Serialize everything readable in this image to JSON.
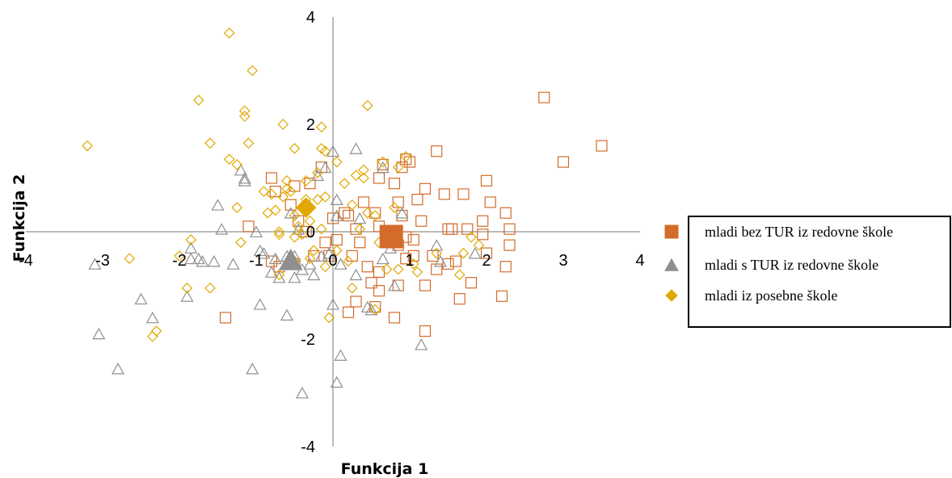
{
  "chart_data": {
    "type": "scatter",
    "xlabel": "Funkcija 1",
    "ylabel": "Funkcija 2",
    "xlim": [
      -4,
      4
    ],
    "ylim": [
      -4,
      4
    ],
    "xticks": [
      "-4",
      "-3",
      "-2",
      "-1",
      "0",
      "1",
      "2",
      "3",
      "4"
    ],
    "yticks": [
      "4",
      "2",
      "0",
      "-2",
      "-4"
    ],
    "grid": false,
    "legend_position": "right",
    "series": [
      {
        "name": "mladi bez TUR iz redovne škole",
        "marker": "square",
        "color": "#D46B2A",
        "centroid": [
          0.76,
          -0.09
        ],
        "points": [
          [
            2.75,
            2.5
          ],
          [
            3.5,
            1.6
          ],
          [
            3.0,
            1.3
          ],
          [
            1.35,
            1.5
          ],
          [
            1.0,
            1.3
          ],
          [
            0.9,
            1.2
          ],
          [
            0.95,
            1.35
          ],
          [
            0.65,
            1.25
          ],
          [
            1.2,
            0.8
          ],
          [
            1.45,
            0.7
          ],
          [
            1.7,
            0.7
          ],
          [
            2.0,
            0.95
          ],
          [
            2.05,
            0.55
          ],
          [
            2.25,
            0.35
          ],
          [
            2.3,
            0.05
          ],
          [
            2.3,
            -0.25
          ],
          [
            2.25,
            -0.65
          ],
          [
            2.2,
            -1.2
          ],
          [
            0.8,
            0.9
          ],
          [
            0.85,
            0.55
          ],
          [
            0.55,
            0.35
          ],
          [
            0.4,
            0.55
          ],
          [
            0.6,
            0.1
          ],
          [
            0.2,
            0.3
          ],
          [
            0.35,
            -0.2
          ],
          [
            0.25,
            -0.45
          ],
          [
            0.45,
            -0.65
          ],
          [
            0.6,
            -0.75
          ],
          [
            0.85,
            -0.25
          ],
          [
            1.05,
            -0.15
          ],
          [
            1.15,
            0.2
          ],
          [
            1.3,
            -0.45
          ],
          [
            1.35,
            -0.7
          ],
          [
            1.55,
            0.05
          ],
          [
            1.5,
            -0.6
          ],
          [
            1.75,
            0.05
          ],
          [
            1.8,
            -0.95
          ],
          [
            1.6,
            -0.55
          ],
          [
            1.65,
            -1.25
          ],
          [
            1.95,
            0.2
          ],
          [
            2.0,
            -0.4
          ],
          [
            1.95,
            -0.05
          ],
          [
            1.2,
            -1.0
          ],
          [
            1.05,
            -0.45
          ],
          [
            0.95,
            -0.5
          ],
          [
            0.85,
            -1.0
          ],
          [
            0.6,
            -1.1
          ],
          [
            0.55,
            -1.4
          ],
          [
            0.8,
            -1.6
          ],
          [
            0.3,
            -1.3
          ],
          [
            0.2,
            -1.5
          ],
          [
            0.0,
            0.25
          ],
          [
            0.05,
            -0.15
          ],
          [
            -0.15,
            1.2
          ],
          [
            -0.3,
            0.9
          ],
          [
            -0.5,
            0.85
          ],
          [
            -0.55,
            0.5
          ],
          [
            -0.8,
            1.0
          ],
          [
            -0.75,
            0.75
          ],
          [
            -0.45,
            0.2
          ],
          [
            -0.35,
            0.0
          ],
          [
            -0.1,
            -0.2
          ],
          [
            -0.05,
            -0.45
          ],
          [
            -0.25,
            -0.45
          ],
          [
            -0.5,
            -0.6
          ],
          [
            -0.8,
            -0.55
          ],
          [
            -1.1,
            0.1
          ],
          [
            -1.4,
            -1.6
          ],
          [
            -0.7,
            -0.65
          ],
          [
            0.5,
            -0.95
          ],
          [
            0.95,
            -0.1
          ],
          [
            1.1,
            0.6
          ],
          [
            1.2,
            -1.85
          ],
          [
            0.6,
            1.0
          ],
          [
            0.9,
            0.3
          ],
          [
            1.5,
            0.05
          ],
          [
            0.3,
            0.05
          ],
          [
            0.15,
            0.35
          ]
        ]
      },
      {
        "name": "mladi s TUR iz redovne škole",
        "marker": "triangle",
        "color": "#8F8F8F",
        "centroid": [
          -0.55,
          -0.52
        ],
        "points": [
          [
            -3.1,
            -0.6
          ],
          [
            -3.05,
            -1.9
          ],
          [
            -2.8,
            -2.55
          ],
          [
            -2.5,
            -1.25
          ],
          [
            -2.35,
            -1.6
          ],
          [
            -1.85,
            -0.5
          ],
          [
            -1.9,
            -1.2
          ],
          [
            -1.75,
            -0.5
          ],
          [
            -1.7,
            -0.55
          ],
          [
            -1.55,
            -0.55
          ],
          [
            -1.5,
            0.5
          ],
          [
            -1.45,
            0.05
          ],
          [
            -1.3,
            -0.6
          ],
          [
            -1.15,
            1.0
          ],
          [
            -1.15,
            0.95
          ],
          [
            -1.2,
            1.15
          ],
          [
            -1.0,
            0.0
          ],
          [
            -0.95,
            -0.35
          ],
          [
            -0.9,
            -0.4
          ],
          [
            -0.8,
            -0.75
          ],
          [
            -0.75,
            -0.5
          ],
          [
            -0.7,
            -0.85
          ],
          [
            -0.5,
            -0.45
          ],
          [
            -0.5,
            -0.85
          ],
          [
            -0.4,
            -0.7
          ],
          [
            -0.6,
            -0.45
          ],
          [
            -0.3,
            -0.6
          ],
          [
            -0.25,
            -0.8
          ],
          [
            -0.15,
            -0.45
          ],
          [
            -0.05,
            -0.4
          ],
          [
            0.05,
            0.3
          ],
          [
            0.05,
            0.6
          ],
          [
            0.0,
            -1.35
          ],
          [
            0.1,
            -2.3
          ],
          [
            0.05,
            -2.8
          ],
          [
            -0.1,
            1.2
          ],
          [
            -0.2,
            1.05
          ],
          [
            0.0,
            1.5
          ],
          [
            0.3,
            1.55
          ],
          [
            -0.6,
            -1.55
          ],
          [
            -0.95,
            -1.35
          ],
          [
            -1.05,
            -2.55
          ],
          [
            -0.4,
            -3.0
          ],
          [
            0.45,
            -1.4
          ],
          [
            0.5,
            -1.45
          ],
          [
            0.8,
            -1.0
          ],
          [
            0.65,
            -0.5
          ],
          [
            0.75,
            -0.3
          ],
          [
            1.15,
            -2.1
          ],
          [
            1.4,
            -0.55
          ],
          [
            1.35,
            -0.25
          ],
          [
            1.85,
            -0.4
          ],
          [
            0.65,
            1.2
          ],
          [
            0.3,
            -0.8
          ],
          [
            -1.85,
            -0.3
          ],
          [
            0.9,
            0.35
          ],
          [
            0.35,
            0.25
          ],
          [
            -0.45,
            0.05
          ],
          [
            0.1,
            -0.6
          ],
          [
            -0.55,
            0.35
          ]
        ]
      },
      {
        "name": "mladi iz posebne škole",
        "marker": "diamond",
        "color": "#E0A800",
        "centroid": [
          -0.35,
          0.45
        ],
        "points": [
          [
            -3.2,
            1.6
          ],
          [
            -2.65,
            -0.5
          ],
          [
            -2.35,
            -1.95
          ],
          [
            -2.0,
            -0.45
          ],
          [
            -1.85,
            -0.15
          ],
          [
            -1.9,
            -1.05
          ],
          [
            -1.75,
            2.45
          ],
          [
            -1.6,
            -1.05
          ],
          [
            -1.6,
            1.65
          ],
          [
            -1.35,
            3.7
          ],
          [
            -1.35,
            1.35
          ],
          [
            -1.25,
            1.25
          ],
          [
            -1.25,
            0.45
          ],
          [
            -1.2,
            -0.2
          ],
          [
            -1.15,
            2.15
          ],
          [
            -1.15,
            2.25
          ],
          [
            -1.1,
            1.65
          ],
          [
            -1.05,
            3.0
          ],
          [
            -0.9,
            0.75
          ],
          [
            -0.85,
            0.35
          ],
          [
            -0.8,
            0.7
          ],
          [
            -0.75,
            0.4
          ],
          [
            -0.7,
            0.0
          ],
          [
            -0.7,
            -0.05
          ],
          [
            -0.65,
            0.65
          ],
          [
            -0.6,
            0.95
          ],
          [
            -0.6,
            0.8
          ],
          [
            -0.55,
            0.75
          ],
          [
            -0.5,
            0.3
          ],
          [
            -0.5,
            -0.1
          ],
          [
            -0.5,
            -0.55
          ],
          [
            -0.45,
            0.1
          ],
          [
            -0.4,
            -0.05
          ],
          [
            -0.4,
            0.45
          ],
          [
            -0.35,
            0.6
          ],
          [
            -0.35,
            0.95
          ],
          [
            -0.3,
            0.2
          ],
          [
            -0.25,
            -0.35
          ],
          [
            -0.2,
            0.6
          ],
          [
            -0.15,
            0.05
          ],
          [
            -0.15,
            1.55
          ],
          [
            -0.1,
            1.5
          ],
          [
            -0.1,
            0.65
          ],
          [
            -0.15,
            1.95
          ],
          [
            -0.2,
            1.1
          ],
          [
            -0.1,
            -0.65
          ],
          [
            -0.05,
            -1.6
          ],
          [
            0.05,
            1.3
          ],
          [
            0.05,
            -0.35
          ],
          [
            0.15,
            0.9
          ],
          [
            0.2,
            -0.55
          ],
          [
            0.25,
            0.5
          ],
          [
            0.25,
            -1.05
          ],
          [
            0.35,
            0.05
          ],
          [
            0.4,
            1.15
          ],
          [
            0.4,
            1.0
          ],
          [
            0.45,
            0.35
          ],
          [
            0.55,
            0.3
          ],
          [
            0.6,
            -0.2
          ],
          [
            0.7,
            -0.7
          ],
          [
            0.65,
            1.3
          ],
          [
            0.85,
            1.2
          ],
          [
            0.8,
            0.45
          ],
          [
            0.85,
            -0.7
          ],
          [
            0.95,
            1.4
          ],
          [
            1.05,
            -0.6
          ],
          [
            1.1,
            -0.75
          ],
          [
            1.35,
            -0.4
          ],
          [
            1.7,
            -0.4
          ],
          [
            1.8,
            -0.1
          ],
          [
            1.9,
            -0.25
          ],
          [
            1.65,
            -0.8
          ],
          [
            -0.7,
            -0.8
          ],
          [
            -0.3,
            -0.5
          ],
          [
            0.55,
            -1.45
          ],
          [
            0.45,
            2.35
          ],
          [
            -0.65,
            2.0
          ],
          [
            -0.5,
            1.55
          ],
          [
            0.3,
            1.05
          ],
          [
            -2.3,
            -1.85
          ]
        ]
      }
    ]
  }
}
